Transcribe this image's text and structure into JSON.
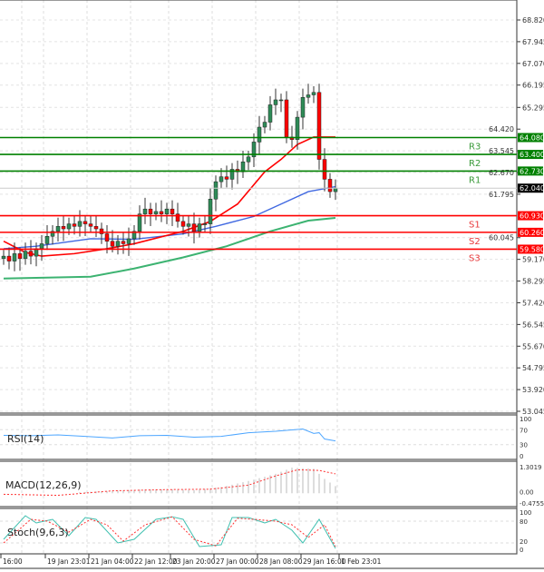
{
  "chart_data": {
    "type": "candlestick",
    "price_axis": {
      "ticks": [
        "68.820",
        "67.945",
        "67.070",
        "66.195",
        "65.295",
        "64.420",
        "63.545",
        "62.670",
        "61.795",
        "60.045",
        "59.170",
        "58.295",
        "57.420",
        "56.545",
        "55.670",
        "54.795",
        "53.920",
        "53.045"
      ],
      "range": [
        53.045,
        68.82
      ]
    },
    "current_price": "62.040",
    "close": [
      59.3,
      59.1,
      59.4,
      59.2,
      59.5,
      59.3,
      59.6,
      59.8,
      60.1,
      60.3,
      60.5,
      60.4,
      60.6,
      60.5,
      60.7,
      60.6,
      60.5,
      60.4,
      60.2,
      59.9,
      59.7,
      59.9,
      59.8,
      60.0,
      60.3,
      61.0,
      61.2,
      61.0,
      61.1,
      61.0,
      61.2,
      61.0,
      60.7,
      60.5,
      60.6,
      60.3,
      60.6,
      60.6,
      61.6,
      62.3,
      62.5,
      62.4,
      62.8,
      62.7,
      63.1,
      63.3,
      63.9,
      64.5,
      64.7,
      65.4,
      65.6,
      65.6,
      64.1,
      64.0,
      64.9,
      65.7,
      65.8,
      65.9,
      63.2,
      62.4,
      61.9,
      62.04
    ],
    "ma_fast": [
      [
        0,
        59.9
      ],
      [
        4,
        59.45
      ],
      [
        7,
        59.3
      ],
      [
        13,
        59.4
      ],
      [
        19,
        59.6
      ],
      [
        24,
        59.8
      ],
      [
        33,
        60.3
      ],
      [
        38,
        60.7
      ],
      [
        43,
        61.4
      ],
      [
        48,
        62.7
      ],
      [
        51,
        63.2
      ],
      [
        54,
        63.8
      ],
      [
        57,
        64.1
      ],
      [
        61,
        64.1
      ]
    ],
    "ma_mid": [
      [
        0,
        59.6
      ],
      [
        6,
        59.7
      ],
      [
        16,
        60.0
      ],
      [
        24,
        59.98
      ],
      [
        33,
        60.2
      ],
      [
        39,
        60.5
      ],
      [
        46,
        60.9
      ],
      [
        51,
        61.4
      ],
      [
        56,
        61.9
      ],
      [
        61,
        62.1
      ]
    ],
    "ma_slow": [
      [
        0,
        58.4
      ],
      [
        16,
        58.47
      ],
      [
        24,
        58.8
      ],
      [
        33,
        59.25
      ],
      [
        41,
        59.7
      ],
      [
        49,
        60.3
      ],
      [
        56,
        60.73
      ],
      [
        61,
        60.84
      ]
    ],
    "colors": {
      "ma_fast": "#ff0000",
      "ma_mid": "#4169e1",
      "ma_slow": "#3cb371",
      "bull": "#2e8b57",
      "bear": "#ff0000",
      "resistance": "#008000",
      "support": "#ff0000"
    },
    "levels": [
      {
        "name": "R3",
        "value": "64.080",
        "type": "resistance"
      },
      {
        "name": "R2",
        "value": "63.400",
        "type": "resistance"
      },
      {
        "name": "R1",
        "value": "62.730",
        "type": "resistance"
      },
      {
        "name": "S1",
        "value": "60.930",
        "type": "support"
      },
      {
        "name": "S2",
        "value": "60.260",
        "type": "support"
      },
      {
        "name": "S3",
        "value": "59.580",
        "type": "support"
      }
    ],
    "time_labels": [
      [
        0,
        "16:00"
      ],
      [
        4,
        "19 Jan 23:01"
      ],
      [
        12,
        "21 Jan 04:00"
      ],
      [
        20,
        "22 Jan 12:00"
      ],
      [
        27,
        "23 Jan 20:00"
      ],
      [
        35,
        "27 Jan 00:00"
      ],
      [
        43,
        "28 Jan 08:00"
      ],
      [
        51,
        "29 Jan 16:00"
      ],
      [
        58,
        "1 Feb 23:01"
      ]
    ],
    "rsi": {
      "label": "RSI(14)",
      "ticks": [
        "100",
        "70",
        "30",
        "0"
      ],
      "values": [
        [
          0,
          55
        ],
        [
          5,
          54
        ],
        [
          10,
          56
        ],
        [
          15,
          52
        ],
        [
          20,
          48
        ],
        [
          25,
          54
        ],
        [
          30,
          55
        ],
        [
          35,
          50
        ],
        [
          40,
          52
        ],
        [
          45,
          62
        ],
        [
          50,
          66
        ],
        [
          55,
          72
        ],
        [
          57,
          60
        ],
        [
          58,
          62
        ],
        [
          59,
          45
        ],
        [
          61,
          40
        ]
      ]
    },
    "macd": {
      "label": "MACD(12,26,9)",
      "ticks": [
        "1.3019",
        "0.00",
        "-0.4755"
      ],
      "range": [
        -0.4755,
        1.3019
      ],
      "hist": [
        [
          14,
          0.05
        ],
        [
          20,
          0.12
        ],
        [
          25,
          0.18
        ],
        [
          30,
          0.2
        ],
        [
          35,
          0.15
        ],
        [
          40,
          0.3
        ],
        [
          45,
          0.6
        ],
        [
          50,
          0.95
        ],
        [
          53,
          1.25
        ],
        [
          57,
          1.2
        ],
        [
          59,
          0.7
        ],
        [
          61,
          0.35
        ]
      ],
      "signal": [
        [
          0,
          -0.05
        ],
        [
          10,
          -0.1
        ],
        [
          20,
          0.12
        ],
        [
          30,
          0.18
        ],
        [
          38,
          0.2
        ],
        [
          45,
          0.4
        ],
        [
          50,
          0.85
        ],
        [
          54,
          1.15
        ],
        [
          58,
          1.12
        ],
        [
          61,
          0.95
        ]
      ]
    },
    "stoch": {
      "label": "Stoch(9,6,3)",
      "ticks": [
        "100",
        "80",
        "20",
        "0"
      ],
      "main": [
        [
          0,
          30
        ],
        [
          4,
          95
        ],
        [
          6,
          75
        ],
        [
          9,
          85
        ],
        [
          12,
          40
        ],
        [
          15,
          90
        ],
        [
          17,
          85
        ],
        [
          21,
          20
        ],
        [
          24,
          30
        ],
        [
          28,
          85
        ],
        [
          31,
          92
        ],
        [
          33,
          85
        ],
        [
          36,
          10
        ],
        [
          40,
          15
        ],
        [
          42,
          90
        ],
        [
          45,
          90
        ],
        [
          48,
          75
        ],
        [
          50,
          85
        ],
        [
          53,
          55
        ],
        [
          55,
          20
        ],
        [
          58,
          85
        ],
        [
          61,
          5
        ]
      ],
      "signal": [
        [
          0,
          20
        ],
        [
          5,
          85
        ],
        [
          8,
          80
        ],
        [
          12,
          50
        ],
        [
          16,
          85
        ],
        [
          19,
          70
        ],
        [
          22,
          25
        ],
        [
          26,
          70
        ],
        [
          31,
          92
        ],
        [
          35,
          30
        ],
        [
          39,
          12
        ],
        [
          43,
          88
        ],
        [
          46,
          85
        ],
        [
          50,
          80
        ],
        [
          53,
          70
        ],
        [
          56,
          35
        ],
        [
          59,
          70
        ],
        [
          61,
          10
        ]
      ]
    }
  }
}
